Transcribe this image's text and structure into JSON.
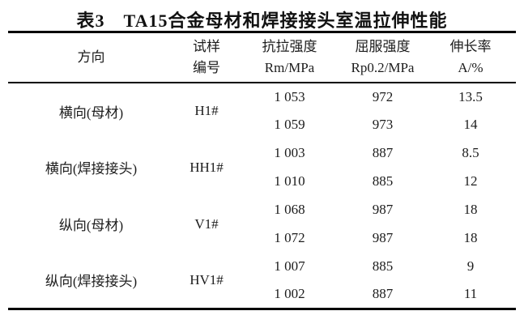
{
  "title": "表3　TA15合金母材和焊接接头室温拉伸性能",
  "table": {
    "headers": {
      "direction": "方向",
      "sample_line1": "试样",
      "sample_line2": "编号",
      "tensile_line1": "抗拉强度",
      "tensile_line2": "Rm/MPa",
      "yield_line1": "屈服强度",
      "yield_line2": "Rp0.2/MPa",
      "elongation_line1": "伸长率",
      "elongation_line2": "A/%"
    },
    "groups": [
      {
        "direction": "横向(母材)",
        "sample": "H1#",
        "rows": [
          [
            "1 053",
            "972",
            "13.5"
          ],
          [
            "1 059",
            "973",
            "14"
          ]
        ]
      },
      {
        "direction": "横向(焊接接头)",
        "sample": "HH1#",
        "rows": [
          [
            "1 003",
            "887",
            "8.5"
          ],
          [
            "1 010",
            "885",
            "12"
          ]
        ]
      },
      {
        "direction": "纵向(母材)",
        "sample": "V1#",
        "rows": [
          [
            "1 068",
            "987",
            "18"
          ],
          [
            "1 072",
            "987",
            "18"
          ]
        ]
      },
      {
        "direction": "纵向(焊接接头)",
        "sample": "HV1#",
        "rows": [
          [
            "1 007",
            "885",
            "9"
          ],
          [
            "1 002",
            "887",
            "11"
          ]
        ]
      }
    ]
  },
  "colors": {
    "text": "#1c1c1c",
    "rule": "#000000",
    "background": "#ffffff"
  }
}
